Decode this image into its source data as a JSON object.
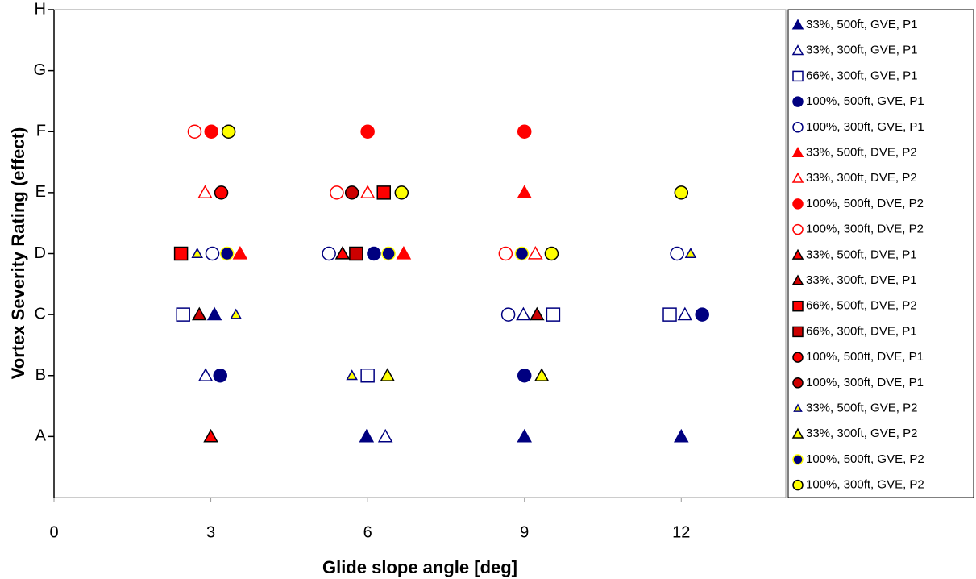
{
  "chart_data": {
    "type": "scatter",
    "xlabel": "Glide slope angle [deg]",
    "ylabel": "Vortex Severity Rating (effect)",
    "xlim": [
      0,
      14
    ],
    "xticks": [
      0,
      3,
      6,
      9,
      12
    ],
    "ylim": [
      0,
      8
    ],
    "yticks": [
      {
        "value": 1,
        "label": "A"
      },
      {
        "value": 2,
        "label": "B"
      },
      {
        "value": 3,
        "label": "C"
      },
      {
        "value": 4,
        "label": "D"
      },
      {
        "value": 5,
        "label": "E"
      },
      {
        "value": 6,
        "label": "F"
      },
      {
        "value": 7,
        "label": "G"
      },
      {
        "value": 8,
        "label": "H"
      }
    ],
    "series": [
      {
        "name": "33%, 500ft, GVE, P1",
        "marker": "triangle",
        "facecolor": "#000080",
        "edgecolor": "#000080",
        "x": [
          5.98,
          9,
          12,
          3.07
        ],
        "y": [
          1,
          1,
          1,
          3
        ]
      },
      {
        "name": "33%, 300ft, GVE, P1",
        "marker": "triangle",
        "facecolor": "#ffffff",
        "edgecolor": "#000080",
        "x": [
          6.34,
          2.9,
          8.98,
          12.07
        ],
        "y": [
          1,
          2,
          3,
          3
        ]
      },
      {
        "name": "66%, 300ft, GVE, P1",
        "marker": "square",
        "facecolor": "#ffffff",
        "edgecolor": "#000080",
        "x": [
          6.0,
          2.47,
          9.55,
          11.78
        ],
        "y": [
          2,
          3,
          3,
          3
        ]
      },
      {
        "name": "100%, 500ft, GVE, P1",
        "marker": "circle",
        "facecolor": "#000080",
        "edgecolor": "#000080",
        "x": [
          3.18,
          9,
          12.4,
          6.12
        ],
        "y": [
          2,
          2,
          3,
          4
        ]
      },
      {
        "name": "100%, 300ft, GVE, P1",
        "marker": "circle",
        "facecolor": "#ffffff",
        "edgecolor": "#000080",
        "x": [
          8.69,
          3.03,
          5.26,
          11.92
        ],
        "y": [
          3,
          4,
          4,
          4
        ]
      },
      {
        "name": "33%, 500ft, DVE, P2",
        "marker": "triangle",
        "facecolor": "#ff0000",
        "edgecolor": "#ff0000",
        "x": [
          3.56,
          6.69,
          9
        ],
        "y": [
          4,
          4,
          5
        ]
      },
      {
        "name": "33%, 300ft, DVE, P2",
        "marker": "triangle",
        "facecolor": "#ffffff",
        "edgecolor": "#ff0000",
        "x": [
          2.89,
          6.0,
          9.21
        ],
        "y": [
          5,
          5,
          4
        ]
      },
      {
        "name": "100%, 500ft, DVE, P2",
        "marker": "circle",
        "facecolor": "#ff0000",
        "edgecolor": "#ff0000",
        "x": [
          3.01,
          6,
          9
        ],
        "y": [
          6,
          6,
          6
        ]
      },
      {
        "name": "100%, 300ft, DVE, P2",
        "marker": "circle",
        "facecolor": "#ffffff",
        "edgecolor": "#ff0000",
        "x": [
          2.69,
          5.41,
          8.64
        ],
        "y": [
          6,
          5,
          4
        ]
      },
      {
        "name": "33%, 500ft, DVE, P1",
        "marker": "triangle",
        "facecolor": "#ff0000",
        "edgecolor": "#000000",
        "x": [
          3,
          5.52
        ],
        "y": [
          1,
          4
        ]
      },
      {
        "name": "33%, 300ft, DVE, P1",
        "marker": "triangle",
        "facecolor": "#cc0000",
        "edgecolor": "#000000",
        "x": [
          2.78,
          9.24
        ],
        "y": [
          3,
          3
        ]
      },
      {
        "name": "66%, 500ft, DVE, P2",
        "marker": "square",
        "facecolor": "#ff0000",
        "edgecolor": "#000000",
        "x": [
          2.43,
          6.31
        ],
        "y": [
          4,
          5
        ]
      },
      {
        "name": "66%, 300ft, DVE, P1",
        "marker": "square",
        "facecolor": "#cc0000",
        "edgecolor": "#000000",
        "x": [
          5.78
        ],
        "y": [
          4
        ]
      },
      {
        "name": "100%, 500ft, DVE, P1",
        "marker": "circle",
        "facecolor": "#ff0000",
        "edgecolor": "#000000",
        "x": [
          3.2
        ],
        "y": [
          5
        ]
      },
      {
        "name": "100%, 300ft, DVE, P1",
        "marker": "circle",
        "facecolor": "#cc0000",
        "edgecolor": "#000000",
        "x": [
          5.7
        ],
        "y": [
          5
        ]
      },
      {
        "name": "33%, 500ft, GVE, P2",
        "marker": "smalltriangle",
        "facecolor": "#ffff00",
        "edgecolor": "#000080",
        "x": [
          5.7,
          2.74,
          3.48,
          12.18
        ],
        "y": [
          2,
          4,
          3,
          4
        ]
      },
      {
        "name": "33%, 300ft, GVE, P2",
        "marker": "triangle",
        "facecolor": "#ffff00",
        "edgecolor": "#000000",
        "x": [
          6.38,
          9.33
        ],
        "y": [
          2,
          2
        ]
      },
      {
        "name": "100%, 500ft, GVE, P2",
        "marker": "circle",
        "facecolor": "#000080",
        "edgecolor": "#ffff00",
        "x": [
          3.31,
          6.4,
          8.95
        ],
        "y": [
          4,
          4,
          4
        ]
      },
      {
        "name": "100%, 300ft, GVE, P2",
        "marker": "circle",
        "facecolor": "#ffff00",
        "edgecolor": "#000000",
        "x": [
          3.34,
          6.65,
          9.52,
          12
        ],
        "y": [
          6,
          5,
          4,
          5
        ]
      }
    ]
  }
}
